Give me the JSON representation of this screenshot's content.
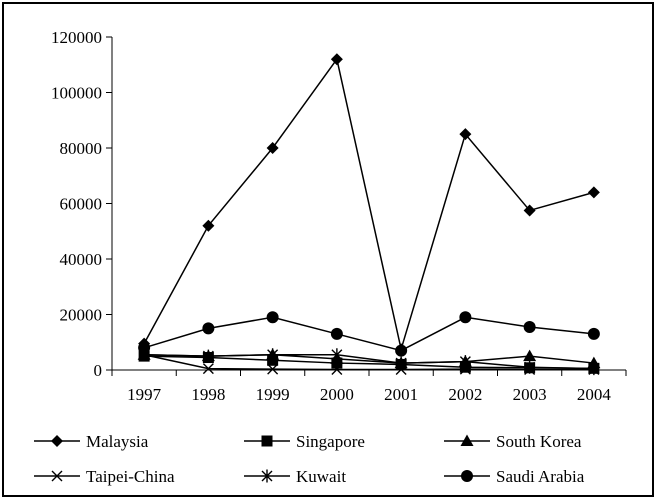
{
  "chart_data": {
    "type": "line",
    "categories": [
      "1997",
      "1998",
      "1999",
      "2000",
      "2001",
      "2002",
      "2003",
      "2004"
    ],
    "y_ticks": [
      "0",
      "20000",
      "40000",
      "60000",
      "80000",
      "100000",
      "120000"
    ],
    "ylim": [
      0,
      120000
    ],
    "grid": false,
    "legend_position": "bottom",
    "line_color": "#000000",
    "series": [
      {
        "name": "Malaysia",
        "marker": "diamond",
        "values": [
          9500,
          52000,
          80000,
          112000,
          7500,
          85000,
          57500,
          64000
        ]
      },
      {
        "name": "Singapore",
        "marker": "square",
        "values": [
          5000,
          4500,
          3500,
          2500,
          2000,
          1000,
          800,
          600
        ]
      },
      {
        "name": "South Korea",
        "marker": "triangle",
        "values": [
          5500,
          5000,
          5500,
          4000,
          2500,
          3000,
          5000,
          2500
        ]
      },
      {
        "name": "Taipei-China",
        "marker": "x",
        "values": [
          5500,
          500,
          300,
          200,
          200,
          300,
          200,
          200
        ]
      },
      {
        "name": "Kuwait",
        "marker": "asterisk",
        "values": [
          5500,
          5000,
          5500,
          5500,
          2500,
          3000,
          1000,
          500
        ]
      },
      {
        "name": "Saudi Arabia",
        "marker": "circle",
        "values": [
          8000,
          15000,
          19000,
          13000,
          7000,
          19000,
          15500,
          13000
        ]
      }
    ]
  }
}
